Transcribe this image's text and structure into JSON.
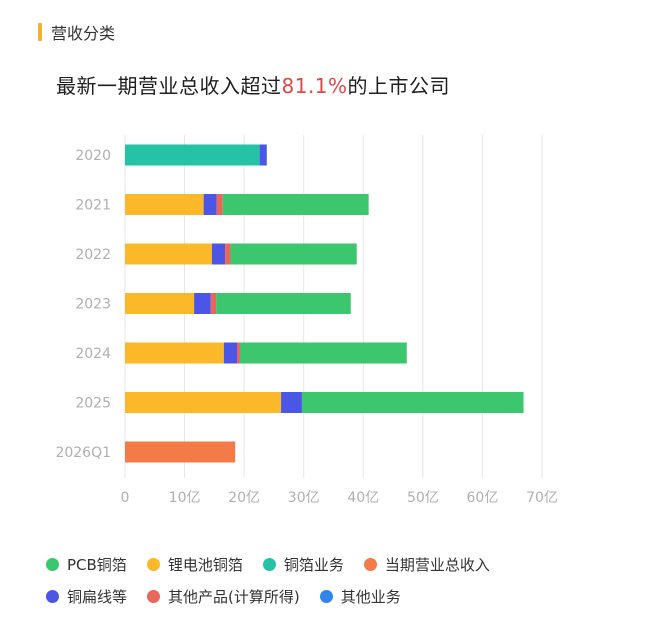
{
  "section": {
    "title": "营收分类"
  },
  "title": {
    "prefix": "最新一期营业总收入超过",
    "highlight": "81.1%",
    "suffix": "的上市公司"
  },
  "colors": {
    "PCB铜箔": "#3cc76f",
    "锂电池铜箔": "#fbb829",
    "铜箔业务": "#24c3a5",
    "当期营业总收入": "#f27b47",
    "铜扁线等": "#4b56e6",
    "其他产品(计算所得)": "#e8665a",
    "其他业务": "#2f86e8",
    "highlight": "#e04848",
    "grid": "#e6e6e6",
    "tick": "#b0b0b0"
  },
  "legend": {
    "rows": [
      [
        "PCB铜箔",
        "锂电池铜箔",
        "铜箔业务",
        "当期营业总收入"
      ],
      [
        "铜扁线等",
        "其他产品(计算所得)",
        "其他业务"
      ]
    ]
  },
  "chart_data": {
    "type": "bar",
    "orientation": "horizontal",
    "stacked": true,
    "unit": "亿",
    "categories": [
      "2020",
      "2021",
      "2022",
      "2023",
      "2024",
      "2025",
      "2026Q1"
    ],
    "xlim": [
      0,
      70
    ],
    "xticks": [
      "0",
      "10亿",
      "20亿",
      "30亿",
      "40亿",
      "50亿",
      "60亿",
      "70亿"
    ],
    "grid": "vertical",
    "legend_position": "bottom",
    "series": [
      {
        "name": "锂电池铜箔",
        "values": [
          0,
          13.2,
          14.6,
          11.6,
          16.6,
          26.2,
          0
        ]
      },
      {
        "name": "铜箔业务",
        "values": [
          22.6,
          0,
          0,
          0,
          0,
          0,
          0
        ]
      },
      {
        "name": "铜扁线等",
        "values": [
          1.2,
          2.2,
          2.2,
          2.8,
          2.2,
          3.5,
          0
        ]
      },
      {
        "name": "其他产品(计算所得)",
        "values": [
          0,
          1.0,
          0.9,
          0.9,
          0.5,
          0,
          0
        ]
      },
      {
        "name": "PCB铜箔",
        "values": [
          0,
          24.5,
          21.2,
          22.6,
          28.0,
          37.2,
          0
        ]
      },
      {
        "name": "当期营业总收入",
        "values": [
          0,
          0,
          0,
          0,
          0,
          0,
          18.5
        ]
      },
      {
        "name": "其他业务",
        "values": [
          0,
          0,
          0,
          0,
          0,
          0,
          0
        ]
      }
    ]
  }
}
